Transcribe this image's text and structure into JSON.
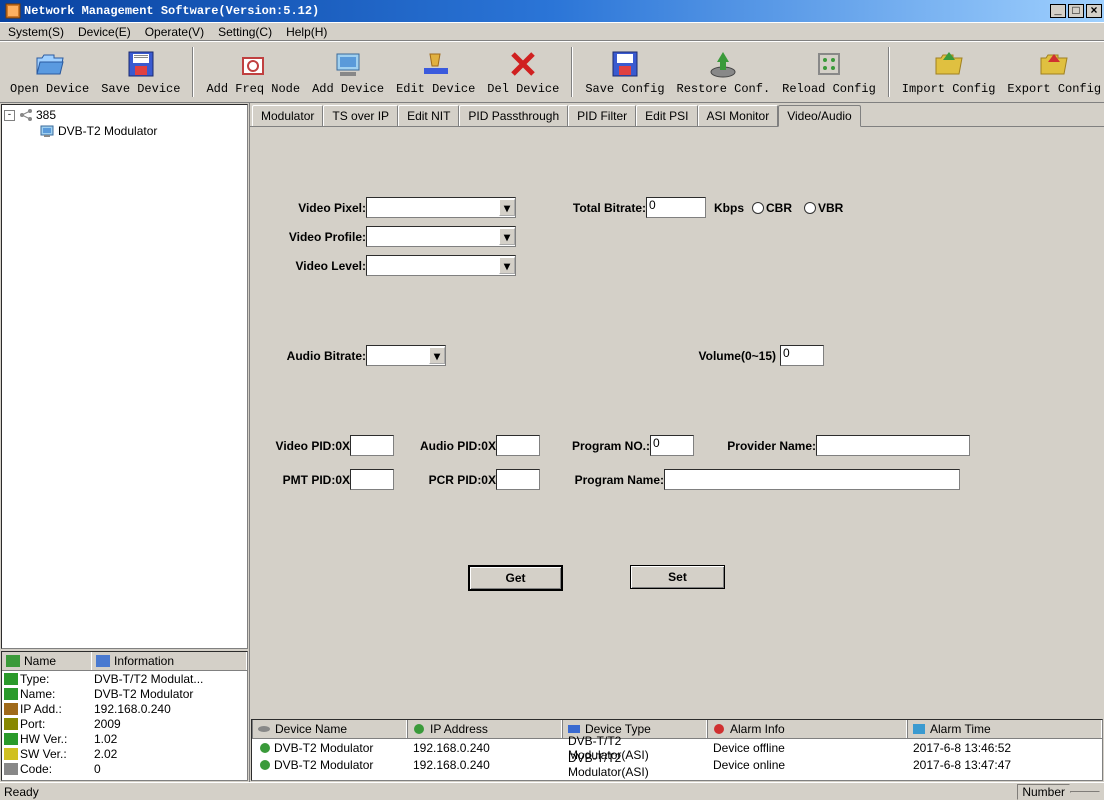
{
  "window": {
    "title": "Network Management Software(Version:5.12)"
  },
  "menus": {
    "system": "System(S)",
    "device": "Device(E)",
    "operate": "Operate(V)",
    "setting": "Setting(C)",
    "help": "Help(H)"
  },
  "toolbar": {
    "open_device": "Open Device",
    "save_device": "Save Device",
    "add_freq": "Add Freq Node",
    "add_device": "Add Device",
    "edit_device": "Edit Device",
    "del_device": "Del Device",
    "save_config": "Save Config",
    "restore_conf": "Restore Conf.",
    "reload_config": "Reload Config",
    "import_config": "Import Config",
    "export_config": "Export Config"
  },
  "tree": {
    "root_label": "385",
    "child_label": "DVB-T2 Modulator"
  },
  "info": {
    "head_name": "Name",
    "head_info": "Information",
    "rows": [
      {
        "name": "Type:",
        "val": "DVB-T/T2 Modulat...",
        "color": "#2a9a2a"
      },
      {
        "name": "Name:",
        "val": "DVB-T2 Modulator",
        "color": "#2a9a2a"
      },
      {
        "name": "IP Add.:",
        "val": "192.168.0.240",
        "color": "#a06a1a"
      },
      {
        "name": "Port:",
        "val": "2009",
        "color": "#888800"
      },
      {
        "name": "HW Ver.:",
        "val": "1.02",
        "color": "#2a9a2a"
      },
      {
        "name": "SW Ver.:",
        "val": "2.02",
        "color": "#d0c020"
      },
      {
        "name": "Code:",
        "val": "0",
        "color": "#888888"
      }
    ]
  },
  "tabs": {
    "modulator": "Modulator",
    "ts_over_ip": "TS over IP",
    "edit_nit": "Edit NIT",
    "pid_pass": "PID Passthrough",
    "pid_filter": "PID Filter",
    "edit_psi": "Edit PSI",
    "asi_monitor": "ASI Monitor",
    "video_audio": "Video/Audio"
  },
  "form": {
    "video_pixel": "Video Pixel:",
    "video_profile": "Video Profile:",
    "video_level": "Video Level:",
    "total_bitrate": "Total Bitrate:",
    "total_bitrate_val": "0",
    "kbps": "Kbps",
    "cbr": "CBR",
    "vbr": "VBR",
    "audio_bitrate": "Audio Bitrate:",
    "volume": "Volume(0~15)",
    "volume_val": "0",
    "video_pid": "Video PID:0X",
    "audio_pid": "Audio PID:0X",
    "program_no": "Program NO.:",
    "program_no_val": "0",
    "provider_name": "Provider Name:",
    "pmt_pid": "PMT PID:0X",
    "pcr_pid": "PCR PID:0X",
    "program_name": "Program Name:",
    "get_btn": "Get",
    "set_btn": "Set"
  },
  "dev_table": {
    "head": {
      "name": "Device Name",
      "ip": "IP Address",
      "type": "Device Type",
      "alarm": "Alarm Info",
      "time": "Alarm Time"
    },
    "widths": {
      "name": "155px",
      "ip": "155px",
      "type": "145px",
      "alarm": "200px",
      "time": "160px"
    },
    "rows": [
      {
        "name": "DVB-T2 Modulator",
        "ip": "192.168.0.240",
        "type": "DVB-T/T2 Modulator(ASI)",
        "alarm": "Device offline",
        "time": "2017-6-8 13:46:52"
      },
      {
        "name": "DVB-T2 Modulator",
        "ip": "192.168.0.240",
        "type": "DVB-T/T2 Modulator(ASI)",
        "alarm": "Device online",
        "time": "2017-6-8 13:47:47"
      }
    ]
  },
  "status": {
    "ready": "Ready",
    "number": "Number"
  }
}
